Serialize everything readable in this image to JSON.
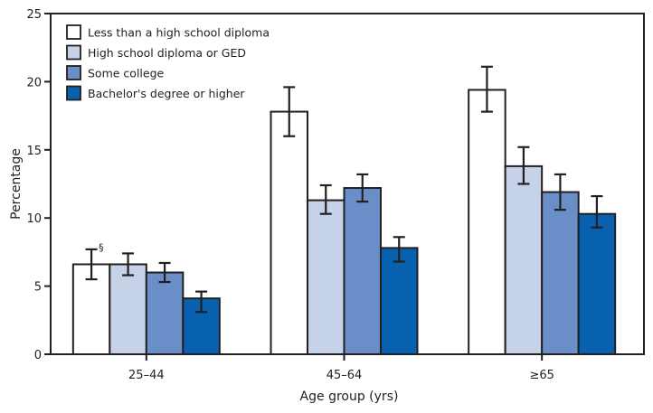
{
  "chart_data": {
    "type": "bar",
    "title": "",
    "xlabel": "Age group (yrs)",
    "ylabel": "Percentage",
    "ylim": [
      0,
      25
    ],
    "yticks": [
      0,
      5,
      10,
      15,
      20,
      25
    ],
    "ytick_labels": [
      "0",
      "5",
      "10",
      "15",
      "20",
      "25"
    ],
    "grid": false,
    "legend_position": "top-left",
    "categories": [
      "25–44",
      "45–64",
      "≥65"
    ],
    "series": [
      {
        "name": "Less than a high school diploma",
        "color": "#ffffff",
        "values": [
          6.6,
          17.8,
          19.4
        ],
        "ci_lower": [
          5.5,
          16.0,
          17.8
        ],
        "ci_upper": [
          7.7,
          19.6,
          21.1
        ]
      },
      {
        "name": "High school diploma or GED",
        "color": "#c5d2e8",
        "values": [
          6.6,
          11.3,
          13.8
        ],
        "ci_lower": [
          5.8,
          10.3,
          12.5
        ],
        "ci_upper": [
          7.4,
          12.4,
          15.2
        ]
      },
      {
        "name": "Some college",
        "color": "#6a8fc8",
        "values": [
          6.0,
          12.2,
          11.9
        ],
        "ci_lower": [
          5.3,
          11.2,
          10.6
        ],
        "ci_upper": [
          6.7,
          13.2,
          13.2
        ]
      },
      {
        "name": "Bachelor's degree or higher",
        "color": "#0761ae",
        "values": [
          4.1,
          7.8,
          10.3
        ],
        "ci_lower": [
          3.1,
          6.8,
          9.3
        ],
        "ci_upper": [
          4.6,
          8.6,
          11.6
        ]
      }
    ],
    "annotations": [
      {
        "text": "§",
        "category": "25–44",
        "series": "Less than a high school diploma"
      }
    ]
  },
  "colors": {
    "axis": "#231f20",
    "bar_outline": "#231f20"
  }
}
